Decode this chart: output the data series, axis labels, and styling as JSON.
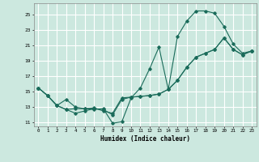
{
  "xlabel": "Humidex (Indice chaleur)",
  "bg_color": "#cce8df",
  "line_color": "#1a6b5a",
  "grid_color": "#ffffff",
  "xlim": [
    -0.5,
    23.5
  ],
  "ylim": [
    10.5,
    26.5
  ],
  "xticks": [
    0,
    1,
    2,
    3,
    4,
    5,
    6,
    7,
    8,
    9,
    10,
    11,
    12,
    13,
    14,
    15,
    16,
    17,
    18,
    19,
    20,
    21,
    22,
    23
  ],
  "yticks": [
    11,
    13,
    15,
    17,
    19,
    21,
    23,
    25
  ],
  "line1_x": [
    0,
    1,
    2,
    3,
    4,
    5,
    6,
    7,
    8,
    9,
    10,
    11,
    12,
    13,
    14,
    15,
    16,
    17,
    18,
    19,
    20,
    21,
    22,
    23
  ],
  "line1_y": [
    15.5,
    14.5,
    13.2,
    12.7,
    12.8,
    12.8,
    12.7,
    12.8,
    10.9,
    11.1,
    14.2,
    15.5,
    18.0,
    20.8,
    15.3,
    22.2,
    24.2,
    25.5,
    25.5,
    25.2,
    23.5,
    21.2,
    20.0,
    20.3
  ],
  "line2_x": [
    0,
    1,
    2,
    3,
    4,
    5,
    6,
    7,
    8,
    9,
    10,
    11,
    12,
    13,
    14,
    15,
    16,
    17,
    18,
    19,
    20,
    21,
    22,
    23
  ],
  "line2_y": [
    15.5,
    14.5,
    13.2,
    14.0,
    13.0,
    12.8,
    12.9,
    12.5,
    12.2,
    14.2,
    14.3,
    14.4,
    14.5,
    14.7,
    15.3,
    16.5,
    18.2,
    19.5,
    20.0,
    20.5,
    22.0,
    20.5,
    19.8,
    20.3
  ],
  "line3_x": [
    0,
    1,
    2,
    3,
    4,
    5,
    6,
    7,
    8,
    9,
    10,
    11,
    12,
    13,
    14,
    15,
    16,
    17,
    18,
    19,
    20,
    21,
    22,
    23
  ],
  "line3_y": [
    15.5,
    14.5,
    13.2,
    12.7,
    12.2,
    12.5,
    12.8,
    12.7,
    12.0,
    14.0,
    14.3,
    14.4,
    14.5,
    14.7,
    15.3,
    16.5,
    18.2,
    19.5,
    20.0,
    20.5,
    22.0,
    20.5,
    19.8,
    20.3
  ]
}
